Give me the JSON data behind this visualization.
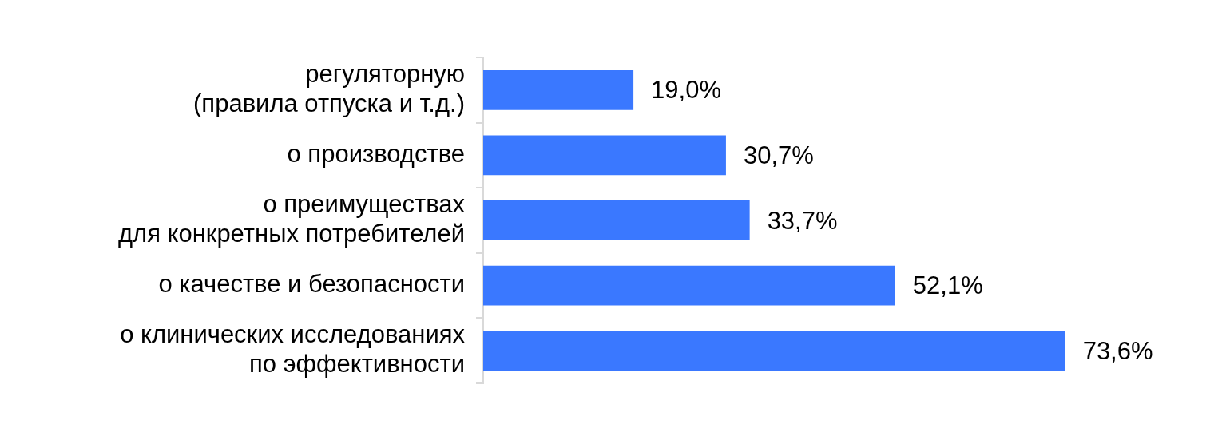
{
  "chart_data": {
    "type": "bar",
    "orientation": "horizontal",
    "categories": [
      "регуляторную\n(правила отпуска и т.д.)",
      "о производстве",
      "о преимуществах\nдля конкретных потребителей",
      "о качестве и безопасности",
      "о клинических исследованиях\nпо эффективности"
    ],
    "values": [
      19.0,
      30.7,
      33.7,
      52.1,
      73.6
    ],
    "value_labels": [
      "19,0%",
      "30,7%",
      "33,7%",
      "52,1%",
      "73,6%"
    ],
    "color": "#3a78ff",
    "tick_labels": "y"
  }
}
